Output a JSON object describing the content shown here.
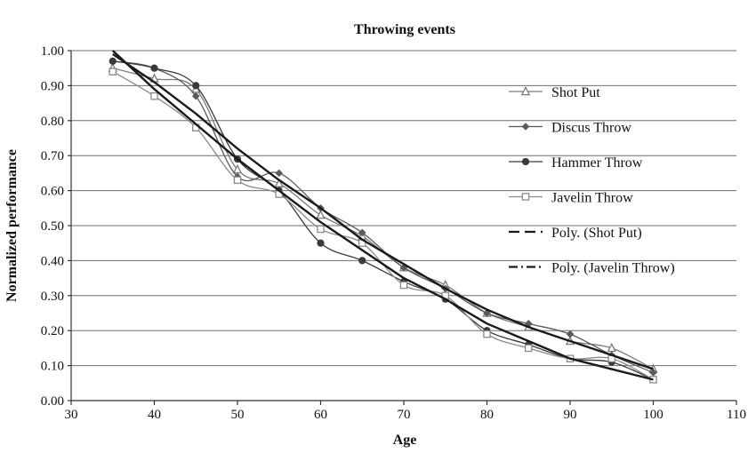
{
  "chart_data": {
    "type": "line",
    "title": "Throwing events",
    "xlabel": "Age",
    "ylabel": "Normalized performance",
    "xlim": [
      30,
      110
    ],
    "ylim": [
      0,
      1.0
    ],
    "x_ticks": [
      "30",
      "40",
      "50",
      "60",
      "70",
      "80",
      "90",
      "100",
      "110"
    ],
    "y_ticks": [
      "0.00",
      "0.10",
      "0.20",
      "0.30",
      "0.40",
      "0.50",
      "0.60",
      "0.70",
      "0.80",
      "0.90",
      "1.00"
    ],
    "grid": true,
    "legend_position": "right",
    "x": [
      35,
      40,
      45,
      50,
      55,
      60,
      65,
      70,
      75,
      80,
      85,
      90,
      95,
      100
    ],
    "series": [
      {
        "name": "Shot Put",
        "marker": "triangle",
        "style": "solid",
        "color": "#7a7a7a",
        "values": [
          0.95,
          0.92,
          0.89,
          0.66,
          0.62,
          0.53,
          0.47,
          0.38,
          0.33,
          0.25,
          0.21,
          0.17,
          0.15,
          0.09
        ]
      },
      {
        "name": "Discus Throw",
        "marker": "diamond",
        "style": "solid",
        "color": "#5a5a5a",
        "values": [
          0.97,
          0.95,
          0.87,
          0.64,
          0.65,
          0.55,
          0.48,
          0.38,
          0.32,
          0.25,
          0.22,
          0.19,
          0.13,
          0.08
        ]
      },
      {
        "name": "Hammer Throw",
        "marker": "circle",
        "style": "solid",
        "color": "#3a3a3a",
        "values": [
          0.97,
          0.95,
          0.9,
          0.69,
          0.6,
          0.45,
          0.4,
          0.34,
          0.29,
          0.2,
          0.16,
          0.12,
          0.11,
          0.06
        ]
      },
      {
        "name": "Javelin Throw",
        "marker": "square",
        "style": "solid",
        "color": "#8a8a8a",
        "values": [
          0.94,
          0.87,
          0.78,
          0.63,
          0.59,
          0.49,
          0.45,
          0.33,
          0.3,
          0.19,
          0.15,
          0.12,
          0.12,
          0.06
        ]
      },
      {
        "name": "Poly. (Shot Put)",
        "marker": "none",
        "style": "dash",
        "color": "#1a1a1a",
        "values": [
          0.99,
          0.91,
          0.82,
          0.72,
          0.63,
          0.55,
          0.46,
          0.39,
          0.32,
          0.26,
          0.21,
          0.17,
          0.13,
          0.09
        ]
      },
      {
        "name": "Poly. (Javelin Throw)",
        "marker": "none",
        "style": "dashdot",
        "color": "#1a1a1a",
        "values": [
          1.0,
          0.89,
          0.79,
          0.69,
          0.6,
          0.51,
          0.43,
          0.35,
          0.29,
          0.22,
          0.17,
          0.12,
          0.09,
          0.06
        ]
      }
    ]
  }
}
